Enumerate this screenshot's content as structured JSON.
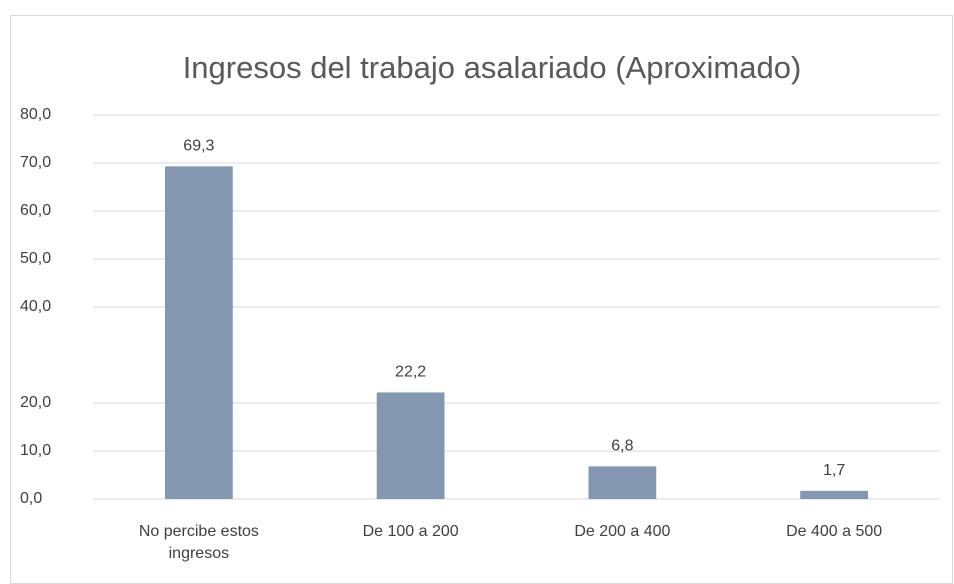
{
  "chart_data": {
    "type": "bar",
    "title": "Ingresos del trabajo asalariado (Aproximado)",
    "categories": [
      "No percibe estos ingresos",
      "De 100 a 200",
      "De 200 a 400",
      "De 400 a 500"
    ],
    "values": [
      69.3,
      22.2,
      6.8,
      1.7
    ],
    "value_labels": [
      "69,3",
      "22,2",
      "6,8",
      "1,7"
    ],
    "color": "#8497b0",
    "ylim": [
      0,
      80
    ],
    "yticks": [
      {
        "value": 0,
        "label": "0,0"
      },
      {
        "value": 10,
        "label": "10,0"
      },
      {
        "value": 20,
        "label": "20,0"
      },
      {
        "value": 40,
        "label": "40,0"
      },
      {
        "value": 50,
        "label": "50,0"
      },
      {
        "value": 60,
        "label": "60,0"
      },
      {
        "value": 70,
        "label": "70,0"
      },
      {
        "value": 80,
        "label": "80,0"
      }
    ],
    "grid": true
  }
}
